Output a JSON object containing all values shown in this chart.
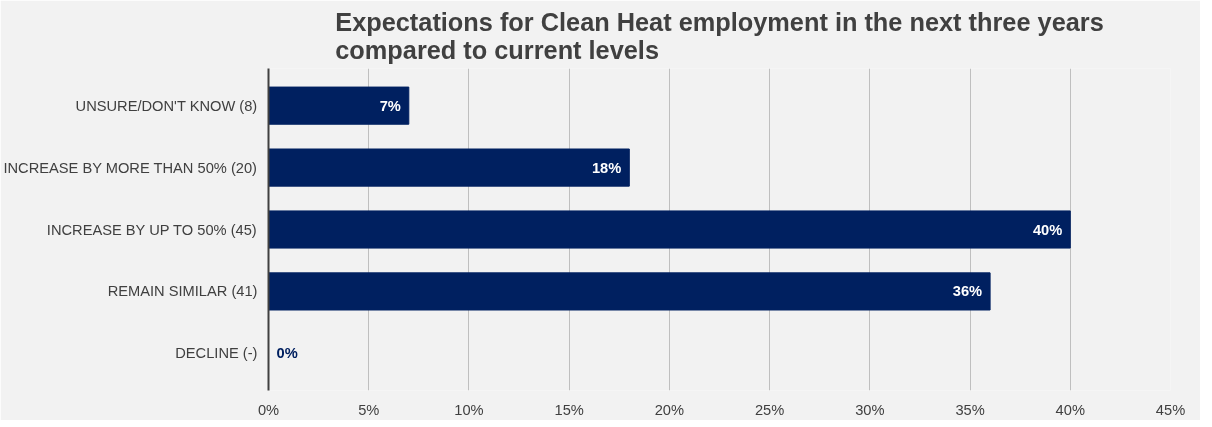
{
  "chart_data": {
    "type": "bar",
    "orientation": "horizontal",
    "title": "Expectations for Clean Heat employment in the next three years\ncompared to current levels",
    "categories": [
      "UNSURE/DON'T KNOW (8)",
      "INCREASE BY MORE THAN 50% (20)",
      "INCREASE BY UP TO 50% (45)",
      "REMAIN SIMILAR (41)",
      "DECLINE (-)"
    ],
    "values": [
      7,
      18,
      40,
      36,
      0
    ],
    "color": "#002060",
    "value_labels": [
      "7%",
      "18%",
      "40%",
      "36%",
      "0%"
    ],
    "xlim": [
      0,
      45
    ],
    "xticks": [
      {
        "value": 0,
        "label": "0%"
      },
      {
        "value": 5,
        "label": "5%"
      },
      {
        "value": 10,
        "label": "10%"
      },
      {
        "value": 15,
        "label": "15%"
      },
      {
        "value": 20,
        "label": "20%"
      },
      {
        "value": 25,
        "label": "25%"
      },
      {
        "value": 30,
        "label": "30%"
      },
      {
        "value": 35,
        "label": "35%"
      },
      {
        "value": 40,
        "label": "40%"
      },
      {
        "value": 45,
        "label": "45%"
      }
    ],
    "grid": "x"
  }
}
